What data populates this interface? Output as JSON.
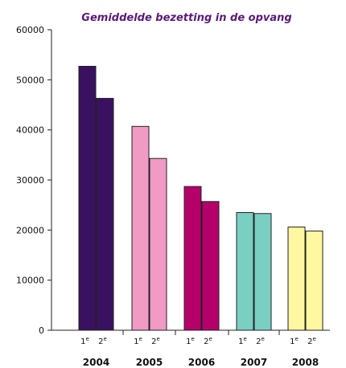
{
  "chart_data": {
    "type": "bar",
    "title": "Gemiddelde bezetting in de opvang",
    "ylim": [
      0,
      60000
    ],
    "y_ticks": [
      "0",
      "10000",
      "20000",
      "30000",
      "40000",
      "50000",
      "60000"
    ],
    "categories": [
      "2004",
      "2005",
      "2006",
      "2007",
      "2008"
    ],
    "half_labels": [
      "1e",
      "2e"
    ],
    "groups": [
      {
        "year": "2004",
        "values": [
          52700,
          46300
        ],
        "color": "#3a1060"
      },
      {
        "year": "2005",
        "values": [
          40700,
          34300
        ],
        "color": "#f09ac4"
      },
      {
        "year": "2006",
        "values": [
          28700,
          25700
        ],
        "color": "#b5006a"
      },
      {
        "year": "2007",
        "values": [
          23500,
          23300
        ],
        "color": "#79cfc1"
      },
      {
        "year": "2008",
        "values": [
          20600,
          19800
        ],
        "color": "#fff8a0"
      }
    ],
    "grid": false
  }
}
